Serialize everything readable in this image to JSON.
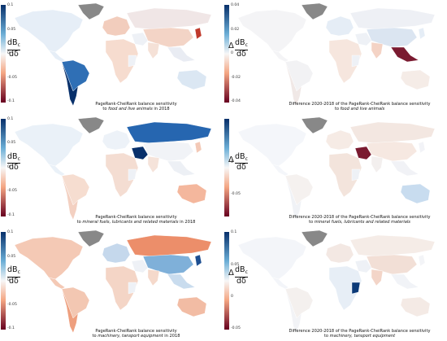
{
  "colorbar_colors": {
    "high": "#08306b",
    "mid_high": "#6baed6",
    "neutral": "#f7f7f7",
    "mid_low": "#f4a582",
    "low": "#67001f"
  },
  "panels": [
    {
      "id": "food-2018",
      "type": "absolute",
      "ticks": [
        "0.1",
        "0.05",
        "0",
        "-0.05",
        "-0.1"
      ],
      "ylabel": {
        "numerator": "dB",
        "subscript": "c",
        "denominator": "dδ",
        "delta": ""
      },
      "caption_line1": "PageRank-CheiRank balance sensitivity",
      "caption_line2_prefix": "to ",
      "caption_line2_italic": "food and live animals",
      "caption_line2_suffix": " in 2018",
      "regions": {
        "na": "#e6eef7",
        "greenland": "#888888",
        "sa": "#2f6fb5",
        "sa_south": "#08306b",
        "europe": "#f2cdbd",
        "africa": "#f6dccf",
        "russia": "#f0e6e6",
        "asia": "#f3d4c6",
        "india": "#f5e1d7",
        "sea": "#e9ecf3",
        "australia": "#dbe7f3",
        "japan": "#c0392b"
      }
    },
    {
      "id": "food-diff",
      "type": "difference",
      "ticks": [
        "0.04",
        "0.02",
        "0",
        "-0.02",
        "-0.04"
      ],
      "ylabel": {
        "numerator": "dB",
        "subscript": "c",
        "denominator": "dδ",
        "delta": "Δ"
      },
      "caption_line1": "Difference 2020-2018 of the PageRank-CheiRank balance sensitivity",
      "caption_line2_prefix": "to ",
      "caption_line2_italic": "food and live animals",
      "caption_line2_suffix": "",
      "regions": {
        "na": "#f4f4f6",
        "greenland": "#888888",
        "sa": "#f2f2f4",
        "sa_south": "#f0e8e6",
        "europe": "#e5edf6",
        "africa": "#f6e6de",
        "russia": "#eef0f5",
        "asia": "#dbe5f1",
        "india": "#f4d3c5",
        "sea": "#7a1a30",
        "australia": "#f5ece7",
        "japan": "#e5edf6"
      }
    },
    {
      "id": "fuel-2018",
      "type": "absolute",
      "ticks": [
        "0.1",
        "0.05",
        "0",
        "-0.05",
        "-0.1"
      ],
      "ylabel": {
        "numerator": "dB",
        "subscript": "c",
        "denominator": "dδ",
        "delta": ""
      },
      "caption_line1": "PageRank-CheiRank balance sensitivity",
      "caption_line2_prefix": "to ",
      "caption_line2_italic": "mineral fuels, lubricants and related materials",
      "caption_line2_suffix": " in 2018",
      "regions": {
        "na": "#eaf1f8",
        "greenland": "#888888",
        "sa": "#f6ddd0",
        "sa_south": "#f3d0c1",
        "europe": "#edf2f8",
        "africa": "#f4ddd2",
        "russia": "#2666b0",
        "asia": "#f1f3f7",
        "india": "#f5e3da",
        "sea": "#edf0f5",
        "australia": "#f4b79d",
        "japan": "#f3c9b7",
        "mideast": "#08306b"
      }
    },
    {
      "id": "fuel-diff",
      "type": "difference",
      "ticks": [
        "0",
        "-0.05"
      ],
      "ylabel": {
        "numerator": "dB",
        "subscript": "c",
        "denominator": "dδ",
        "delta": "Δ"
      },
      "caption_line1": "Difference 2020-2018 of the PageRank-CheiRank balance sensitivity",
      "caption_line2_prefix": "to ",
      "caption_line2_italic": "mineral fuels, lubricants and related materials",
      "caption_line2_suffix": "",
      "regions": {
        "na": "#f4f6fa",
        "greenland": "#888888",
        "sa": "#f5f1ef",
        "sa_south": "#f0f2f6",
        "europe": "#f6ebe5",
        "africa": "#f3e4dc",
        "russia": "#f3e7e1",
        "asia": "#f6e8e1",
        "india": "#f3efee",
        "sea": "#f1f2f6",
        "australia": "#c8dcef",
        "japan": "#f2f3f7",
        "mideast": "#7a1a30"
      }
    },
    {
      "id": "machinery-2018",
      "type": "absolute",
      "ticks": [
        "0.1",
        "0.05",
        "0",
        "-0.05",
        "-0.1"
      ],
      "ylabel": {
        "numerator": "dB",
        "subscript": "c",
        "denominator": "dδ",
        "delta": ""
      },
      "caption_line1": "PageRank-CheiRank balance sensitivity",
      "caption_line2_prefix": "to ",
      "caption_line2_italic": "machinery, tansport equipment",
      "caption_line2_suffix": " in 2018",
      "regions": {
        "na": "#f4c9b5",
        "greenland": "#888888",
        "sa": "#f3c7b2",
        "sa_south": "#ee9f7e",
        "europe": "#c5d8ec",
        "africa": "#f4d5c6",
        "russia": "#ec8e6a",
        "asia": "#7fb0d9",
        "india": "#f5d9cb",
        "sea": "#c9dcee",
        "australia": "#f2bca4",
        "japan": "#1d4f91"
      }
    },
    {
      "id": "machinery-diff",
      "type": "difference",
      "ticks": [
        "0.1",
        "0.05",
        "0",
        "-0.05"
      ],
      "ylabel": {
        "numerator": "dB",
        "subscript": "c",
        "denominator": "dδ",
        "delta": "Δ"
      },
      "caption_line1": "Difference 2020-2018 of the PageRank-CheiRank balance sensitivity",
      "caption_line2_prefix": "to ",
      "caption_line2_italic": "machinery, tansport equipment",
      "caption_line2_suffix": "",
      "regions": {
        "na": "#f3f5f9",
        "greenland": "#888888",
        "sa": "#f4f0ee",
        "sa_south": "#f2f3f6",
        "europe": "#f3e8e3",
        "africa": "#e7eef6",
        "russia": "#f5ece7",
        "asia": "#f2dfd6",
        "india": "#f3d5c8",
        "sea": "#f1f3f7",
        "australia": "#f4eae5",
        "japan": "#f3f4f7",
        "eafrica": "#0b3a78"
      }
    }
  ]
}
